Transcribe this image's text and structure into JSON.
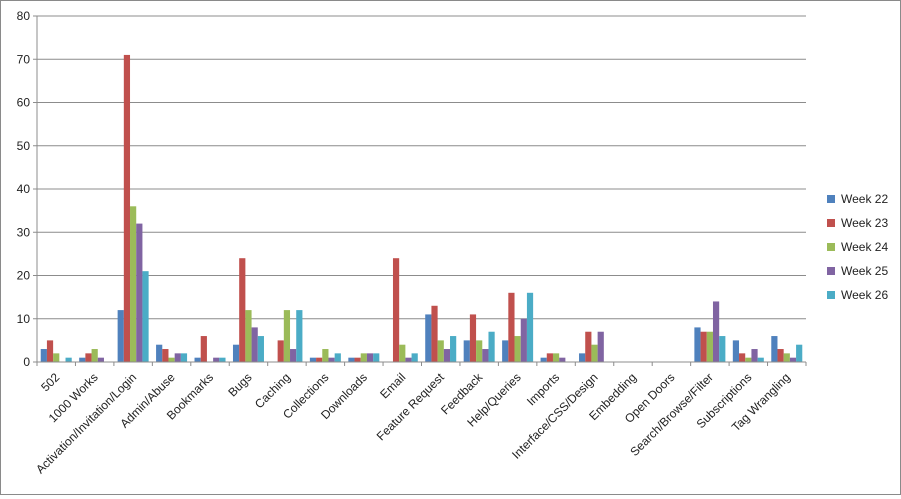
{
  "chart_data": {
    "type": "bar",
    "title": "",
    "xlabel": "",
    "ylabel": "",
    "ylim": [
      0,
      80
    ],
    "yticks": [
      0,
      10,
      20,
      30,
      40,
      50,
      60,
      70,
      80
    ],
    "grid": "horizontal",
    "legend_position": "right",
    "categories": [
      "502",
      "1000 Works",
      "Activation/Invitation/Login",
      "Admin/Abuse",
      "Bookmarks",
      "Bugs",
      "Caching",
      "Collections",
      "Downloads",
      "Email",
      "Feature Request",
      "Feedback",
      "Help/Queries",
      "Imports",
      "Interface/CSS/Design",
      "Embedding",
      "Open Doors",
      "Search/Browse/Filter",
      "Subscriptions",
      "Tag Wrangling"
    ],
    "series": [
      {
        "name": "Week 22",
        "color": "#4f81bd",
        "values": [
          3,
          1,
          12,
          4,
          1,
          4,
          0,
          1,
          1,
          0,
          11,
          5,
          5,
          1,
          2,
          0,
          0,
          8,
          5,
          6
        ]
      },
      {
        "name": "Week 23",
        "color": "#c0504d",
        "values": [
          5,
          2,
          71,
          3,
          6,
          24,
          5,
          1,
          1,
          24,
          13,
          11,
          16,
          2,
          7,
          0,
          0,
          7,
          2,
          3
        ]
      },
      {
        "name": "Week 24",
        "color": "#9bbb59",
        "values": [
          2,
          3,
          36,
          1,
          0,
          12,
          12,
          3,
          2,
          4,
          5,
          5,
          6,
          2,
          4,
          0,
          0,
          7,
          1,
          2
        ]
      },
      {
        "name": "Week 25",
        "color": "#8064a2",
        "values": [
          0,
          1,
          32,
          2,
          1,
          8,
          3,
          1,
          2,
          1,
          3,
          3,
          10,
          1,
          7,
          0,
          0,
          14,
          3,
          1
        ]
      },
      {
        "name": "Week 26",
        "color": "#4bacc6",
        "values": [
          1,
          0,
          21,
          2,
          1,
          6,
          12,
          2,
          2,
          2,
          6,
          7,
          16,
          0,
          0,
          0,
          0,
          6,
          1,
          4
        ]
      }
    ]
  }
}
